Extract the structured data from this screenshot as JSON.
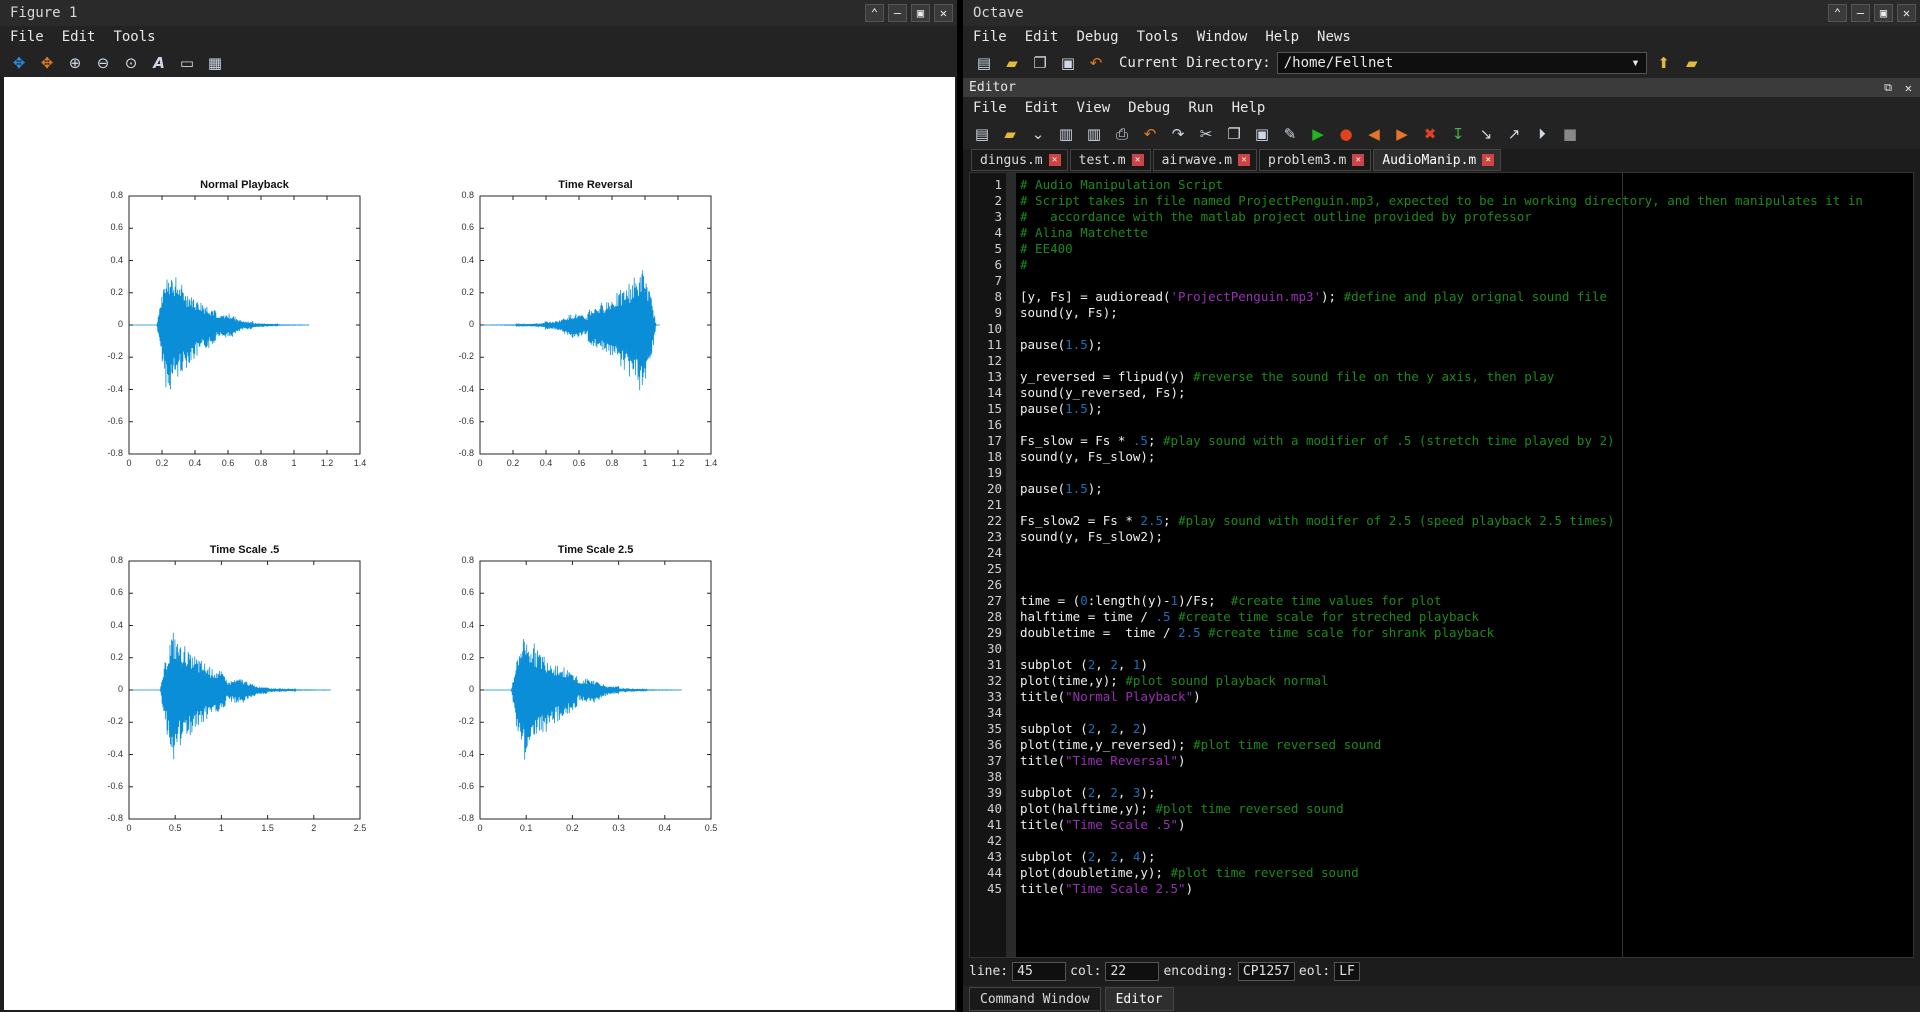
{
  "figure": {
    "title": "Figure 1",
    "menu": [
      "File",
      "Edit",
      "Tools"
    ],
    "toolbar_icons": [
      "pan-icon",
      "rotate-icon",
      "zoom-in-icon",
      "zoom-out-icon",
      "zoom-reset-icon",
      "text-insert-icon",
      "axes-icon",
      "grid-icon"
    ]
  },
  "chart_data": [
    {
      "type": "line",
      "title": "Normal Playback",
      "xticks": [
        "0",
        "0.2",
        "0.4",
        "0.6",
        "0.8",
        "1",
        "1.2",
        "1.4"
      ],
      "yticks": [
        "0.8",
        "0.6",
        "0.4",
        "0.2",
        "0",
        "-0.2",
        "-0.4",
        "-0.6",
        "-0.8"
      ],
      "xlim": [
        0,
        1.4
      ],
      "ylim": [
        -0.8,
        0.8
      ],
      "signal": {
        "start": 0.15,
        "end": 1.09,
        "peak_x": 0.25,
        "peak_amp": 0.44,
        "direction": "forward"
      },
      "color": "#0a8ed8"
    },
    {
      "type": "line",
      "title": "Time Reversal",
      "xticks": [
        "0",
        "0.2",
        "0.4",
        "0.6",
        "0.8",
        "1",
        "1.2",
        "1.4"
      ],
      "yticks": [
        "0.8",
        "0.6",
        "0.4",
        "0.2",
        "0",
        "-0.2",
        "-0.4",
        "-0.6",
        "-0.8"
      ],
      "xlim": [
        0,
        1.4
      ],
      "ylim": [
        -0.8,
        0.8
      ],
      "signal": {
        "start": 0.0,
        "end": 1.09,
        "peak_x": 0.84,
        "peak_amp": 0.44,
        "direction": "reverse"
      },
      "color": "#0a8ed8"
    },
    {
      "type": "line",
      "title": "Time Scale .5",
      "xticks": [
        "0",
        "0.5",
        "1",
        "1.5",
        "2",
        "2.5"
      ],
      "yticks": [
        "0.8",
        "0.6",
        "0.4",
        "0.2",
        "0",
        "-0.2",
        "-0.4",
        "-0.6",
        "-0.8"
      ],
      "xlim": [
        0,
        2.5
      ],
      "ylim": [
        -0.8,
        0.8
      ],
      "signal": {
        "start": 0.3,
        "end": 2.18,
        "peak_x": 0.5,
        "peak_amp": 0.44,
        "direction": "forward"
      },
      "color": "#0a8ed8"
    },
    {
      "type": "line",
      "title": "Time Scale 2.5",
      "xticks": [
        "0",
        "0.1",
        "0.2",
        "0.3",
        "0.4",
        "0.5"
      ],
      "yticks": [
        "0.8",
        "0.6",
        "0.4",
        "0.2",
        "0",
        "-0.2",
        "-0.4",
        "-0.6",
        "-0.8"
      ],
      "xlim": [
        0,
        0.5
      ],
      "ylim": [
        -0.8,
        0.8
      ],
      "signal": {
        "start": 0.06,
        "end": 0.436,
        "peak_x": 0.1,
        "peak_amp": 0.44,
        "direction": "forward"
      },
      "color": "#0a8ed8"
    }
  ],
  "octave": {
    "title": "Octave",
    "menu": [
      "File",
      "Edit",
      "Debug",
      "Tools",
      "Window",
      "Help",
      "News"
    ],
    "current_directory_label": "Current Directory:",
    "current_directory": "/home/Fellnet",
    "editor_title": "Editor",
    "editor_menu": [
      "File",
      "Edit",
      "View",
      "Debug",
      "Run",
      "Help"
    ],
    "tabs": [
      {
        "label": "dingus.m",
        "active": false
      },
      {
        "label": "test.m",
        "active": false
      },
      {
        "label": "airwave.m",
        "active": false
      },
      {
        "label": "problem3.m",
        "active": false
      },
      {
        "label": "AudioManip.m",
        "active": true
      }
    ],
    "code_lines": [
      [
        [
          "c",
          "# Audio Manipulation Script"
        ]
      ],
      [
        [
          "c",
          "# Script takes in file named ProjectPenguin.mp3, expected to be in working directory, and then manipulates it in"
        ]
      ],
      [
        [
          "c",
          "#   accordance with the matlab project outline provided by professor"
        ]
      ],
      [
        [
          "c",
          "# Alina Matchette"
        ]
      ],
      [
        [
          "c",
          "# EE400"
        ]
      ],
      [
        [
          "c",
          "#"
        ]
      ],
      [],
      [
        [
          "t",
          "[y, Fs] = audioread("
        ],
        [
          "s",
          "'ProjectPenguin.mp3'"
        ],
        [
          "t",
          "); "
        ],
        [
          "c",
          "#define and play orignal sound file"
        ]
      ],
      [
        [
          "t",
          "sound(y, Fs);"
        ]
      ],
      [],
      [
        [
          "t",
          "pause("
        ],
        [
          "n",
          "1.5"
        ],
        [
          "t",
          ");"
        ]
      ],
      [],
      [
        [
          "t",
          "y_reversed = flipud(y) "
        ],
        [
          "c",
          "#reverse the sound file on the y axis, then play"
        ]
      ],
      [
        [
          "t",
          "sound(y_reversed, Fs);"
        ]
      ],
      [
        [
          "t",
          "pause("
        ],
        [
          "n",
          "1.5"
        ],
        [
          "t",
          ");"
        ]
      ],
      [],
      [
        [
          "t",
          "Fs_slow = Fs * "
        ],
        [
          "n",
          ".5"
        ],
        [
          "t",
          "; "
        ],
        [
          "c",
          "#play sound with a modifier of .5 (stretch time played by 2)"
        ]
      ],
      [
        [
          "t",
          "sound(y, Fs_slow);"
        ]
      ],
      [],
      [
        [
          "t",
          "pause("
        ],
        [
          "n",
          "1.5"
        ],
        [
          "t",
          ");"
        ]
      ],
      [],
      [
        [
          "t",
          "Fs_slow2 = Fs * "
        ],
        [
          "n",
          "2.5"
        ],
        [
          "t",
          "; "
        ],
        [
          "c",
          "#play sound with modifer of 2.5 (speed playback 2.5 times)"
        ]
      ],
      [
        [
          "t",
          "sound(y, Fs_slow2);"
        ]
      ],
      [],
      [],
      [],
      [
        [
          "t",
          "time = ("
        ],
        [
          "n",
          "0"
        ],
        [
          "t",
          ":length(y)-"
        ],
        [
          "n",
          "1"
        ],
        [
          "t",
          ")/Fs;  "
        ],
        [
          "c",
          "#create time values for plot"
        ]
      ],
      [
        [
          "t",
          "halftime = time / "
        ],
        [
          "n",
          ".5"
        ],
        [
          "t",
          " "
        ],
        [
          "c",
          "#create time scale for streched playback"
        ]
      ],
      [
        [
          "t",
          "doubletime =  time / "
        ],
        [
          "n",
          "2.5"
        ],
        [
          "t",
          " "
        ],
        [
          "c",
          "#create time scale for shrank playback"
        ]
      ],
      [],
      [
        [
          "t",
          "subplot ("
        ],
        [
          "n",
          "2"
        ],
        [
          "t",
          ", "
        ],
        [
          "n",
          "2"
        ],
        [
          "t",
          ", "
        ],
        [
          "n",
          "1"
        ],
        [
          "t",
          ")"
        ]
      ],
      [
        [
          "t",
          "plot(time,y); "
        ],
        [
          "c",
          "#plot sound playback normal"
        ]
      ],
      [
        [
          "t",
          "title("
        ],
        [
          "s",
          "\"Normal Playback\""
        ],
        [
          "t",
          ")"
        ]
      ],
      [],
      [
        [
          "t",
          "subplot ("
        ],
        [
          "n",
          "2"
        ],
        [
          "t",
          ", "
        ],
        [
          "n",
          "2"
        ],
        [
          "t",
          ", "
        ],
        [
          "n",
          "2"
        ],
        [
          "t",
          ")"
        ]
      ],
      [
        [
          "t",
          "plot(time,y_reversed); "
        ],
        [
          "c",
          "#plot time reversed sound"
        ]
      ],
      [
        [
          "t",
          "title("
        ],
        [
          "s",
          "\"Time Reversal\""
        ],
        [
          "t",
          ")"
        ]
      ],
      [],
      [
        [
          "t",
          "subplot ("
        ],
        [
          "n",
          "2"
        ],
        [
          "t",
          ", "
        ],
        [
          "n",
          "2"
        ],
        [
          "t",
          ", "
        ],
        [
          "n",
          "3"
        ],
        [
          "t",
          ");"
        ]
      ],
      [
        [
          "t",
          "plot(halftime,y); "
        ],
        [
          "c",
          "#plot time reversed sound"
        ]
      ],
      [
        [
          "t",
          "title("
        ],
        [
          "s",
          "\"Time Scale .5\""
        ],
        [
          "t",
          ")"
        ]
      ],
      [],
      [
        [
          "t",
          "subplot ("
        ],
        [
          "n",
          "2"
        ],
        [
          "t",
          ", "
        ],
        [
          "n",
          "2"
        ],
        [
          "t",
          ", "
        ],
        [
          "n",
          "4"
        ],
        [
          "t",
          ");"
        ]
      ],
      [
        [
          "t",
          "plot(doubletime,y); "
        ],
        [
          "c",
          "#plot time reversed sound"
        ]
      ],
      [
        [
          "t",
          "title("
        ],
        [
          "s",
          "\"Time Scale 2.5\""
        ],
        [
          "t",
          ")"
        ]
      ]
    ],
    "status": {
      "line_label": "line:",
      "line": "45",
      "col_label": "col:",
      "col": "22",
      "encoding_label": "encoding:",
      "encoding": "CP1257",
      "eol_label": "eol:",
      "eol": "LF"
    },
    "bottom_tabs": [
      {
        "label": "Command Window",
        "active": false
      },
      {
        "label": "Editor",
        "active": true
      }
    ]
  }
}
